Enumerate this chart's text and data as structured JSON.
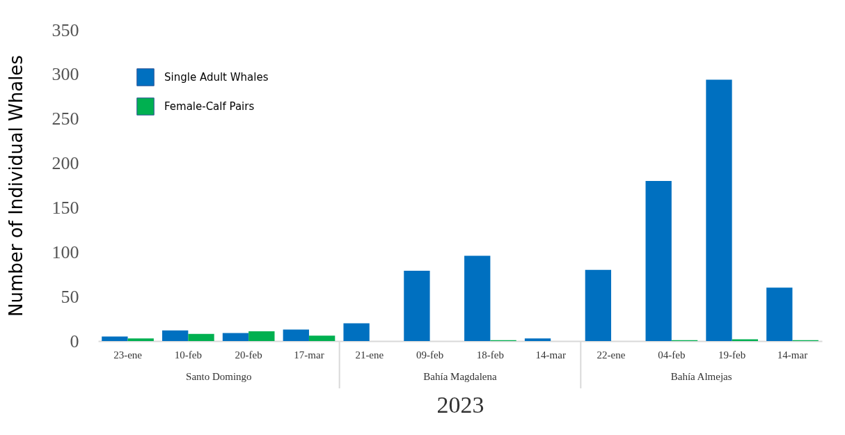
{
  "chart_data": {
    "type": "bar",
    "categories": [
      "23-ene",
      "10-feb",
      "20-feb",
      "17-mar",
      "21-ene",
      "09-feb",
      "18-feb",
      "14-mar",
      "22-ene",
      "04-feb",
      "19-feb",
      "14-mar"
    ],
    "series": [
      {
        "name": "Single Adult Whales",
        "color": "#0070c0",
        "values": [
          5,
          12,
          9,
          13,
          20,
          79,
          96,
          3,
          80,
          180,
          294,
          60
        ]
      },
      {
        "name": "Female-Calf Pairs",
        "color": "#00b050",
        "values": [
          3,
          8,
          11,
          6,
          0,
          0,
          1,
          0,
          0,
          1,
          2,
          1
        ]
      }
    ],
    "ylabel": "Number of Individual Whales",
    "xlabel": "2023",
    "annotations": [
      "Santo Domingo",
      "Bahía Magdalena",
      "Bahía Almejas"
    ],
    "ylim": [
      0,
      350
    ],
    "yticks": [
      0,
      50,
      100,
      150,
      200,
      250,
      300,
      350
    ],
    "grid": false,
    "legend": "top left"
  }
}
